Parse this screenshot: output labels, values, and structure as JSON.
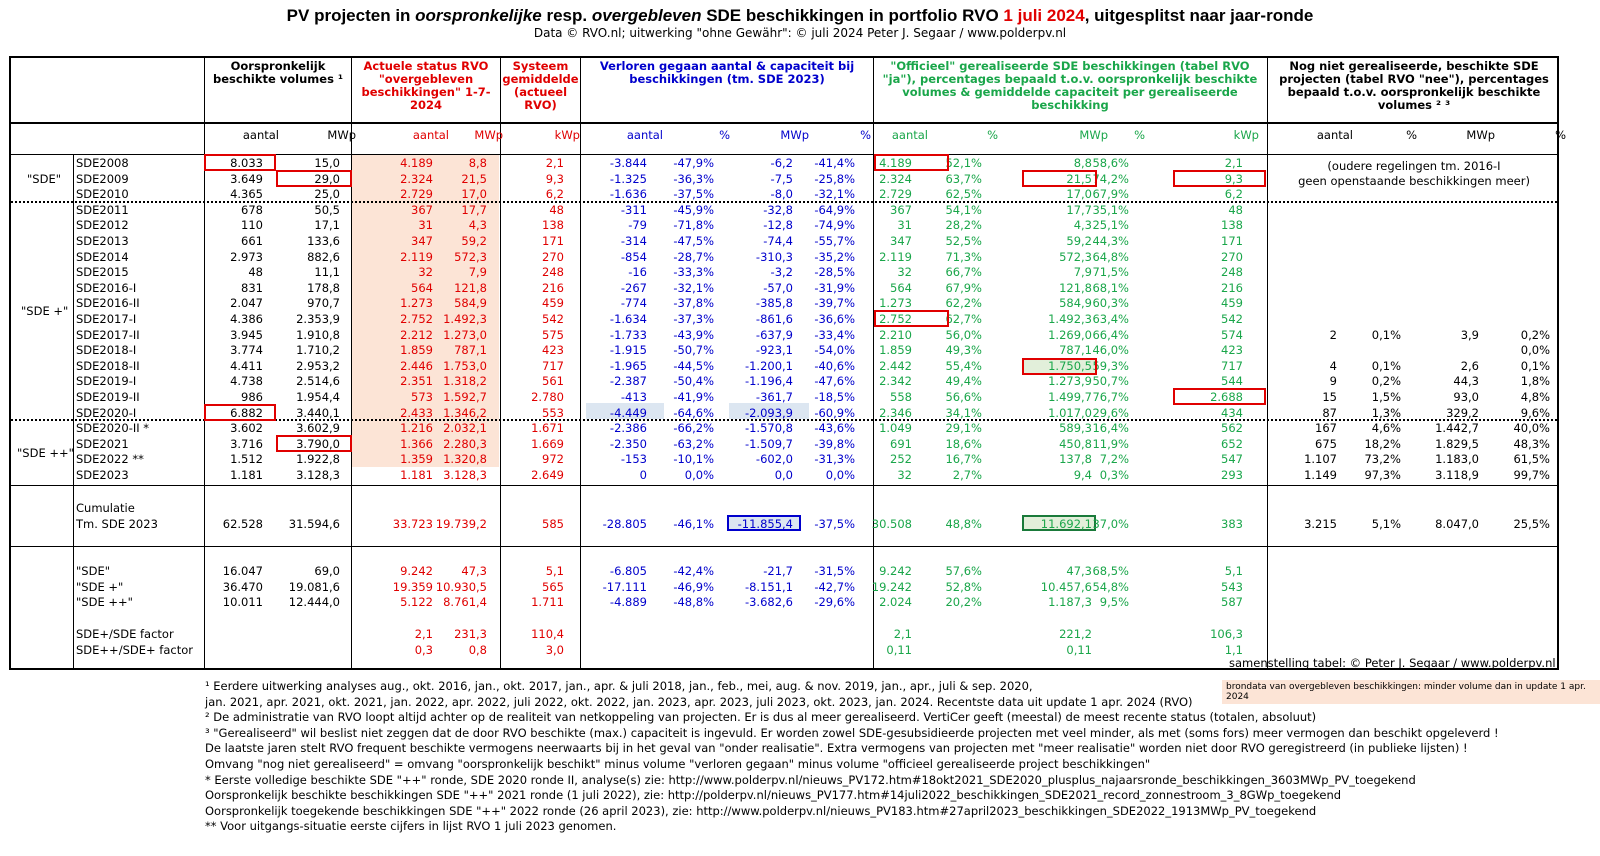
{
  "title": {
    "pre": "PV projecten in ",
    "it1": "oorspronkelijke",
    "mid": " resp. ",
    "it2": "overgebleven",
    "post": " SDE beschikkingen in portfolio RVO ",
    "date": "1 juli 2024",
    "end": ", uitgesplitst naar jaar-ronde"
  },
  "subtitle": "Data © RVO.nl; uitwerking \"ohne Gewähr\": © juli 2024 Peter J. Segaar / www.polderpv.nl",
  "headers": {
    "orig": "Oorspronkelijk beschikte volumes ¹",
    "actueel": "Actuele status RVO \"overgebleven beschikkingen\" 1-7-2024",
    "systeem": "Systeem gemiddelde (actueel RVO)",
    "verloren": "Verloren gegaan aantal & capaciteit bij beschikkingen (tm. SDE 2023)",
    "officieel": "\"Officieel\" gerealiseerde SDE beschikkingen (tabel RVO \"ja\"), percentages bepaald t.o.v. oorspronkelijk beschikte volumes & gemiddelde capaciteit per gerealiseerde beschikking",
    "nognie": "Nog niet gerealiseerde, beschikte SDE projecten (tabel RVO \"nee\"), percentages bepaald t.o.v. oorspronkelijk beschikte volumes ² ³"
  },
  "subheaders": [
    "aantal",
    "MWp",
    "aantal",
    "MWp",
    "kWp",
    "aantal",
    "%",
    "MWp",
    "%",
    "aantal",
    "%",
    "MWp",
    "%",
    "kWp",
    "aantal",
    "%",
    "MWp",
    "%"
  ],
  "groups": [
    "\"SDE\"",
    "\"SDE +\"",
    "\"SDE ++\""
  ],
  "rows": [
    [
      "SDE2008",
      "8.033",
      "15,0",
      "4.189",
      "8,8",
      "2,1",
      "-3.844",
      "-47,9%",
      "-6,2",
      "-41,4%",
      "4.189",
      "52,1%",
      "8,8",
      "58,6%",
      "2,1",
      "",
      "",
      "",
      ""
    ],
    [
      "SDE2009",
      "3.649",
      "29,0",
      "2.324",
      "21,5",
      "9,3",
      "-1.325",
      "-36,3%",
      "-7,5",
      "-25,8%",
      "2.324",
      "63,7%",
      "21,5",
      "74,2%",
      "9,3",
      "",
      "",
      "",
      ""
    ],
    [
      "SDE2010",
      "4.365",
      "25,0",
      "2.729",
      "17,0",
      "6,2",
      "-1.636",
      "-37,5%",
      "-8,0",
      "-32,1%",
      "2.729",
      "62,5%",
      "17,0",
      "67,9%",
      "6,2",
      "",
      "",
      "",
      ""
    ],
    [
      "SDE2011",
      "678",
      "50,5",
      "367",
      "17,7",
      "48",
      "-311",
      "-45,9%",
      "-32,8",
      "-64,9%",
      "367",
      "54,1%",
      "17,7",
      "35,1%",
      "48",
      "",
      "",
      "",
      ""
    ],
    [
      "SDE2012",
      "110",
      "17,1",
      "31",
      "4,3",
      "138",
      "-79",
      "-71,8%",
      "-12,8",
      "-74,9%",
      "31",
      "28,2%",
      "4,3",
      "25,1%",
      "138",
      "",
      "",
      "",
      ""
    ],
    [
      "SDE2013",
      "661",
      "133,6",
      "347",
      "59,2",
      "171",
      "-314",
      "-47,5%",
      "-74,4",
      "-55,7%",
      "347",
      "52,5%",
      "59,2",
      "44,3%",
      "171",
      "",
      "",
      "",
      ""
    ],
    [
      "SDE2014",
      "2.973",
      "882,6",
      "2.119",
      "572,3",
      "270",
      "-854",
      "-28,7%",
      "-310,3",
      "-35,2%",
      "2.119",
      "71,3%",
      "572,3",
      "64,8%",
      "270",
      "",
      "",
      "",
      ""
    ],
    [
      "SDE2015",
      "48",
      "11,1",
      "32",
      "7,9",
      "248",
      "-16",
      "-33,3%",
      "-3,2",
      "-28,5%",
      "32",
      "66,7%",
      "7,9",
      "71,5%",
      "248",
      "",
      "",
      "",
      ""
    ],
    [
      "SDE2016-I",
      "831",
      "178,8",
      "564",
      "121,8",
      "216",
      "-267",
      "-32,1%",
      "-57,0",
      "-31,9%",
      "564",
      "67,9%",
      "121,8",
      "68,1%",
      "216",
      "",
      "",
      "",
      ""
    ],
    [
      "SDE2016-II",
      "2.047",
      "970,7",
      "1.273",
      "584,9",
      "459",
      "-774",
      "-37,8%",
      "-385,8",
      "-39,7%",
      "1.273",
      "62,2%",
      "584,9",
      "60,3%",
      "459",
      "",
      "",
      "",
      ""
    ],
    [
      "SDE2017-I",
      "4.386",
      "2.353,9",
      "2.752",
      "1.492,3",
      "542",
      "-1.634",
      "-37,3%",
      "-861,6",
      "-36,6%",
      "2.752",
      "62,7%",
      "1.492,3",
      "63,4%",
      "542",
      "",
      "",
      "",
      ""
    ],
    [
      "SDE2017-II",
      "3.945",
      "1.910,8",
      "2.212",
      "1.273,0",
      "575",
      "-1.733",
      "-43,9%",
      "-637,9",
      "-33,4%",
      "2.210",
      "56,0%",
      "1.269,0",
      "66,4%",
      "574",
      "2",
      "0,1%",
      "3,9",
      "0,2%"
    ],
    [
      "SDE2018-I",
      "3.774",
      "1.710,2",
      "1.859",
      "787,1",
      "423",
      "-1.915",
      "-50,7%",
      "-923,1",
      "-54,0%",
      "1.859",
      "49,3%",
      "787,1",
      "46,0%",
      "423",
      "",
      "",
      "",
      "0,0%"
    ],
    [
      "SDE2018-II",
      "4.411",
      "2.953,2",
      "2.446",
      "1.753,0",
      "717",
      "-1.965",
      "-44,5%",
      "-1.200,1",
      "-40,6%",
      "2.442",
      "55,4%",
      "1.750,5",
      "59,3%",
      "717",
      "4",
      "0,1%",
      "2,6",
      "0,1%"
    ],
    [
      "SDE2019-I",
      "4.738",
      "2.514,6",
      "2.351",
      "1.318,2",
      "561",
      "-2.387",
      "-50,4%",
      "-1.196,4",
      "-47,6%",
      "2.342",
      "49,4%",
      "1.273,9",
      "50,7%",
      "544",
      "9",
      "0,2%",
      "44,3",
      "1,8%"
    ],
    [
      "SDE2019-II",
      "986",
      "1.954,4",
      "573",
      "1.592,7",
      "2.780",
      "-413",
      "-41,9%",
      "-361,7",
      "-18,5%",
      "558",
      "56,6%",
      "1.499,7",
      "76,7%",
      "2.688",
      "15",
      "1,5%",
      "93,0",
      "4,8%"
    ],
    [
      "SDE2020-I",
      "6.882",
      "3.440,1",
      "2.433",
      "1.346,2",
      "553",
      "-4.449",
      "-64,6%",
      "-2.093,9",
      "-60,9%",
      "2.346",
      "34,1%",
      "1.017,0",
      "29,6%",
      "434",
      "87",
      "1,3%",
      "329,2",
      "9,6%"
    ],
    [
      "SDE2020-II *",
      "3.602",
      "3.602,9",
      "1.216",
      "2.032,1",
      "1.671",
      "-2.386",
      "-66,2%",
      "-1.570,8",
      "-43,6%",
      "1.049",
      "29,1%",
      "589,3",
      "16,4%",
      "562",
      "167",
      "4,6%",
      "1.442,7",
      "40,0%"
    ],
    [
      "SDE2021",
      "3.716",
      "3.790,0",
      "1.366",
      "2.280,3",
      "1.669",
      "-2.350",
      "-63,2%",
      "-1.509,7",
      "-39,8%",
      "691",
      "18,6%",
      "450,8",
      "11,9%",
      "652",
      "675",
      "18,2%",
      "1.829,5",
      "48,3%"
    ],
    [
      "SDE2022 **",
      "1.512",
      "1.922,8",
      "1.359",
      "1.320,8",
      "972",
      "-153",
      "-10,1%",
      "-602,0",
      "-31,3%",
      "252",
      "16,7%",
      "137,8",
      "7,2%",
      "547",
      "1.107",
      "73,2%",
      "1.183,0",
      "61,5%"
    ],
    [
      "SDE2023",
      "1.181",
      "3.128,3",
      "1.181",
      "3.128,3",
      "2.649",
      "0",
      "0,0%",
      "0,0",
      "0,0%",
      "32",
      "2,7%",
      "9,4",
      "0,3%",
      "293",
      "1.149",
      "97,3%",
      "3.118,9",
      "99,7%"
    ]
  ],
  "oudere": [
    "(oudere regelingen tm. 2016-I",
    "geen openstaande beschikkingen meer)"
  ],
  "cumulatie": {
    "label1": "Cumulatie",
    "label2": "Tm. SDE 2023",
    "vals": [
      "62.528",
      "31.594,6",
      "33.723",
      "19.739,2",
      "585",
      "-28.805",
      "-46,1%",
      "-11.855,4",
      "-37,5%",
      "30.508",
      "48,8%",
      "11.692,1",
      "37,0%",
      "383",
      "3.215",
      "5,1%",
      "8.047,0",
      "25,5%"
    ]
  },
  "summary": [
    [
      "\"SDE\"",
      "16.047",
      "69,0",
      "9.242",
      "47,3",
      "5,1",
      "-6.805",
      "-42,4%",
      "-21,7",
      "-31,5%",
      "9.242",
      "57,6%",
      "47,3",
      "68,5%",
      "5,1"
    ],
    [
      "\"SDE +\"",
      "36.470",
      "19.081,6",
      "19.359",
      "10.930,5",
      "565",
      "-17.111",
      "-46,9%",
      "-8.151,1",
      "-42,7%",
      "19.242",
      "52,8%",
      "10.457,6",
      "54,8%",
      "543"
    ],
    [
      "\"SDE ++\"",
      "10.011",
      "12.444,0",
      "5.122",
      "8.761,4",
      "1.711",
      "-4.889",
      "-48,8%",
      "-3.682,6",
      "-29,6%",
      "2.024",
      "20,2%",
      "1.187,3",
      "9,5%",
      "587"
    ]
  ],
  "factors": [
    [
      "SDE+/SDE factor",
      "2,1",
      "231,3",
      "110,4",
      "2,1",
      "221,2",
      "106,3"
    ],
    [
      "SDE++/SDE+ factor",
      "0,3",
      "0,8",
      "3,0",
      "0,11",
      "0,11",
      "1,1"
    ]
  ],
  "credit": "samenstelling tabel: © Peter J. Segaar / www.polderpv.nl",
  "brondata": "brondata van overgebleven beschikkingen: minder volume dan in update 1 apr. 2024",
  "notes": [
    "¹ Eerdere uitwerking analyses aug., okt. 2016, jan., okt.  2017, jan., apr. & juli 2018, jan., feb., mei, aug. & nov. 2019, jan., apr., juli & sep. 2020,",
    "  jan. 2021, apr. 2021, okt. 2021, jan. 2022, apr. 2022, juli 2022, okt. 2022, jan. 2023, apr. 2023, juli 2023, okt. 2023, jan. 2024. Recentste data uit update 1 apr. 2024 (RVO)",
    "² De administratie van RVO loopt altijd achter op de realiteit van netkoppeling van projecten. Er is dus al meer gerealiseerd. VertiCer geeft (meestal) de meest recente status (totalen, absoluut)",
    "³ \"Gerealiseerd\" wil beslist niet zeggen dat de door RVO beschikte (max.) capaciteit is ingevuld. Er worden zowel SDE-gesubsidieerde projecten met veel minder, als met (soms fors) meer vermogen dan beschikt opgeleverd !",
    "De laatste jaren stelt RVO frequent beschikte vermogens neerwaarts bij in het geval van \"onder realisatie\". Extra vermogens van projecten met \"meer realisatie\" worden niet door RVO geregistreerd (in publieke lijsten) !",
    "Omvang \"nog niet gerealiseerd\" = omvang \"oorspronkelijk beschikt\" minus volume \"verloren gegaan\" minus volume \"officieel gerealiseerde project beschikkingen\"",
    "* Eerste volledige beschikte SDE \"++\" ronde, SDE 2020 ronde II, analyse(s) zie: http://www.polderpv.nl/nieuws_PV172.htm#18okt2021_SDE2020_plusplus_najaarsronde_beschikkingen_3603MWp_PV_toegekend",
    "Oorspronkelijk beschikte beschikkingen SDE \"++\" 2021 ronde (1 juli 2022), zie: http://polderpv.nl/nieuws_PV177.htm#14juli2022_beschikkingen_SDE2021_record_zonnestroom_3_8GWp_toegekend",
    "Oorspronkelijk toegekende beschikkingen SDE \"++\" 2022 ronde (26 april 2023), zie: http://www.polderpv.nl/nieuws_PV183.htm#27april2023_beschikkingen_SDE2022_1913MWp_PV_toegekend",
    "** Voor uitgangs-situatie eerste cijfers in lijst RVO 1 juli 2023 genomen."
  ]
}
